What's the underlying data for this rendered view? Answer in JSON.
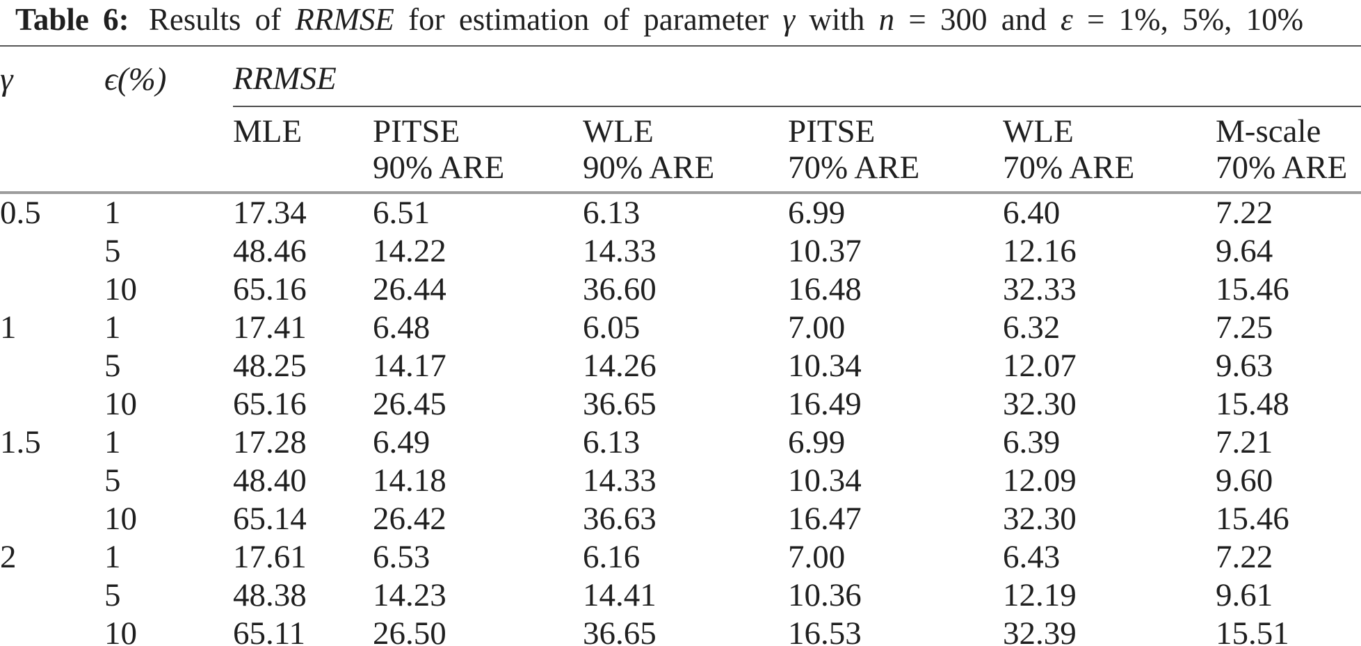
{
  "caption": {
    "label": "Table 6:",
    "seg1": "Results of",
    "rrmse": "RRMSE",
    "seg2": "for estimation of parameter",
    "gamma_sym": "γ",
    "seg3": "with",
    "n_sym": "n",
    "seg4": "= 300 and",
    "eps_sym": "ε",
    "seg5": "= 1%, 5%, 10%"
  },
  "header": {
    "gamma": "γ",
    "epsilon": "ϵ(%)",
    "group": "RRMSE",
    "cols": [
      {
        "line1": "MLE",
        "line2": ""
      },
      {
        "line1": "PITSE",
        "line2": "90% ARE"
      },
      {
        "line1": "WLE",
        "line2": "90% ARE"
      },
      {
        "line1": "PITSE",
        "line2": "70% ARE"
      },
      {
        "line1": "WLE",
        "line2": "70% ARE"
      },
      {
        "line1": "M-scale",
        "line2": "70% ARE"
      }
    ]
  },
  "chart_data": {
    "type": "table",
    "title": "Table 6: Results of RRMSE for estimation of parameter γ with n = 300 and ε = 1%, 5%, 10%",
    "columns": [
      "γ",
      "ϵ(%)",
      "MLE",
      "PITSE 90% ARE",
      "WLE 90% ARE",
      "PITSE 70% ARE",
      "WLE 70% ARE",
      "M-scale 70% ARE"
    ],
    "rows": [
      [
        "0.5",
        "1",
        "17.34",
        "6.51",
        "6.13",
        "6.99",
        "6.40",
        "7.22"
      ],
      [
        "",
        "5",
        "48.46",
        "14.22",
        "14.33",
        "10.37",
        "12.16",
        "9.64"
      ],
      [
        "",
        "10",
        "65.16",
        "26.44",
        "36.60",
        "16.48",
        "32.33",
        "15.46"
      ],
      [
        "1",
        "1",
        "17.41",
        "6.48",
        "6.05",
        "7.00",
        "6.32",
        "7.25"
      ],
      [
        "",
        "5",
        "48.25",
        "14.17",
        "14.26",
        "10.34",
        "12.07",
        "9.63"
      ],
      [
        "",
        "10",
        "65.16",
        "26.45",
        "36.65",
        "16.49",
        "32.30",
        "15.48"
      ],
      [
        "1.5",
        "1",
        "17.28",
        "6.49",
        "6.13",
        "6.99",
        "6.39",
        "7.21"
      ],
      [
        "",
        "5",
        "48.40",
        "14.18",
        "14.33",
        "10.34",
        "12.09",
        "9.60"
      ],
      [
        "",
        "10",
        "65.14",
        "26.42",
        "36.63",
        "16.47",
        "32.30",
        "15.46"
      ],
      [
        "2",
        "1",
        "17.61",
        "6.53",
        "6.16",
        "7.00",
        "6.43",
        "7.22"
      ],
      [
        "",
        "5",
        "48.38",
        "14.23",
        "14.41",
        "10.36",
        "12.19",
        "9.61"
      ],
      [
        "",
        "10",
        "65.11",
        "26.50",
        "36.65",
        "16.53",
        "32.39",
        "15.51"
      ]
    ]
  }
}
